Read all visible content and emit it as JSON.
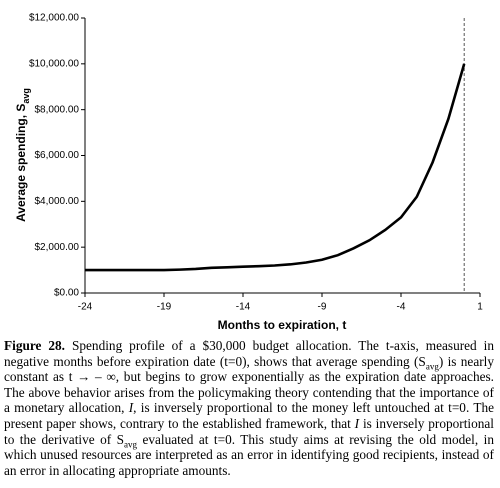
{
  "chart_data": {
    "type": "line",
    "x_label": "Months to expiration, t",
    "y_label": "Average spending, S",
    "y_label_subscript": "avg",
    "x": [
      -24,
      -23,
      -22,
      -21,
      -20,
      -19,
      -18,
      -17,
      -16,
      -15,
      -14,
      -13,
      -12,
      -11,
      -10,
      -9,
      -8,
      -7,
      -6,
      -5,
      -4,
      -3,
      -2,
      -1,
      0
    ],
    "values": [
      1000,
      1000,
      1000,
      1000,
      1000,
      1000,
      1020,
      1050,
      1100,
      1120,
      1150,
      1170,
      1200,
      1250,
      1330,
      1450,
      1650,
      1950,
      2300,
      2750,
      3300,
      4200,
      5700,
      7600,
      10000
    ],
    "color": "#000000",
    "xlim": [
      -24,
      1
    ],
    "xticks": [
      -24,
      -19,
      -14,
      -9,
      -4,
      1
    ],
    "ylim": [
      0,
      12000
    ],
    "yticks": [
      {
        "value": 0,
        "label": "$0.00"
      },
      {
        "value": 2000,
        "label": "$2,000.00"
      },
      {
        "value": 4000,
        "label": "$4,000.00"
      },
      {
        "value": 6000,
        "label": "$6,000.00"
      },
      {
        "value": 8000,
        "label": "$8,000.00"
      },
      {
        "value": 10000,
        "label": "$10,000.00"
      },
      {
        "value": 12000,
        "label": "$12,000.00"
      }
    ],
    "reference_line_x": 0,
    "reference_line_style": "dashed"
  },
  "caption": {
    "runs": [
      {
        "text": "Figure 28.",
        "style": "bold"
      },
      {
        "text": " Spending profile of a $30,000 budget allocation. The t-axis, measured in negative months before expiration date (t=0), shows that average spending (S",
        "style": "normal"
      },
      {
        "text": "avg",
        "style": "sub"
      },
      {
        "text": ") is nearly constant as t → – ∞, but begins to grow exponentially as the expiration date approaches. The above behavior arises from the policymaking theory contending that the importance of a monetary allocation, ",
        "style": "normal"
      },
      {
        "text": "I",
        "style": "italic"
      },
      {
        "text": ", is inversely proportional to the money left untouched at t=0. The present paper shows, contrary to the established framework, that ",
        "style": "normal"
      },
      {
        "text": "I",
        "style": "italic"
      },
      {
        "text": " is inversely proportional to the derivative of S",
        "style": "normal"
      },
      {
        "text": "avg",
        "style": "sub"
      },
      {
        "text": " evaluated at t=0. This study aims at revising the old model, in which unused resources are interpreted as an error in identifying good recipients, instead of an error in allocating appropriate amounts.",
        "style": "normal"
      }
    ]
  }
}
